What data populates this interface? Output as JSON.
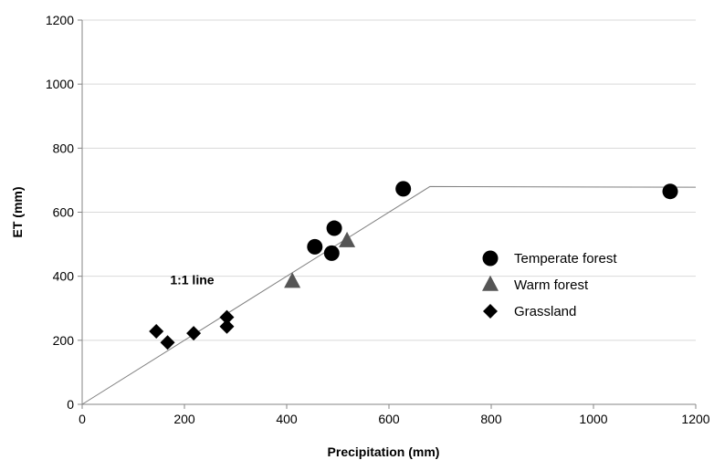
{
  "chart_data": {
    "type": "scatter",
    "title": "",
    "xlabel": "Precipitation (mm)",
    "ylabel": "ET (mm)",
    "xlim": [
      0,
      1200
    ],
    "ylim": [
      0,
      1200
    ],
    "xticks": [
      0,
      200,
      400,
      600,
      800,
      1000,
      1200
    ],
    "yticks": [
      0,
      200,
      400,
      600,
      800,
      1000,
      1200
    ],
    "grid": "horizontal",
    "legend_position": "right",
    "annotation": "1:1 line",
    "reference_line": {
      "points": [
        [
          0,
          0
        ],
        [
          680,
          680
        ],
        [
          1200,
          678
        ]
      ]
    },
    "series": [
      {
        "name": "Temperate forest",
        "marker": "circle",
        "color": "#000000",
        "points": [
          [
            455,
            492
          ],
          [
            488,
            472
          ],
          [
            493,
            550
          ],
          [
            628,
            673
          ],
          [
            1150,
            665
          ]
        ]
      },
      {
        "name": "Warm forest",
        "marker": "triangle",
        "color": "#555555",
        "points": [
          [
            411,
            383
          ],
          [
            518,
            510
          ]
        ]
      },
      {
        "name": "Grassland",
        "marker": "diamond",
        "color": "#000000",
        "points": [
          [
            145,
            228
          ],
          [
            167,
            193
          ],
          [
            218,
            222
          ],
          [
            283,
            272
          ],
          [
            283,
            243
          ]
        ]
      }
    ]
  }
}
